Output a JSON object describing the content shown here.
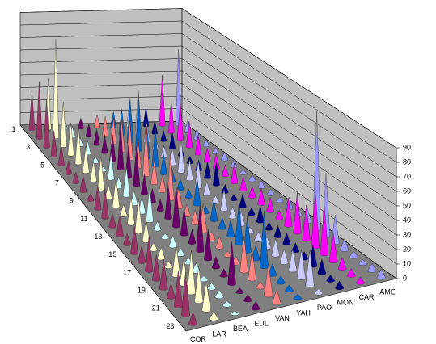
{
  "chart_data": {
    "type": "cone3d",
    "categories": [
      1,
      null,
      3,
      null,
      5,
      null,
      7,
      null,
      9,
      null,
      11,
      null,
      13,
      null,
      15,
      null,
      17,
      null,
      19,
      null,
      21,
      null,
      23
    ],
    "series": [
      {
        "name": "COR",
        "color": "#993366",
        "values": [
          30,
          45,
          38,
          20,
          15,
          10,
          8,
          12,
          5,
          18,
          22,
          10,
          15,
          8,
          20,
          12,
          25,
          18,
          20,
          10,
          25,
          30,
          8
        ]
      },
      {
        "name": "LAR",
        "color": "#ffffcc",
        "values": [
          40,
          78,
          35,
          25,
          30,
          20,
          15,
          25,
          10,
          22,
          8,
          20,
          25,
          15,
          5,
          8,
          4,
          22,
          18,
          30,
          25,
          20,
          5
        ]
      },
      {
        "name": "BEA",
        "color": "#ccffff",
        "values": [
          5,
          8,
          6,
          10,
          4,
          3,
          20,
          8,
          22,
          10,
          12,
          25,
          6,
          3,
          8,
          5,
          4,
          6,
          3,
          4,
          5,
          3,
          2
        ]
      },
      {
        "name": "EUL",
        "color": "#660066",
        "values": [
          8,
          10,
          12,
          14,
          20,
          35,
          25,
          30,
          15,
          10,
          8,
          25,
          30,
          20,
          10,
          35,
          22,
          8,
          5,
          30,
          3,
          4,
          5
        ]
      },
      {
        "name": "VAN",
        "color": "#ff8080",
        "values": [
          10,
          15,
          20,
          25,
          30,
          22,
          40,
          18,
          12,
          35,
          15,
          8,
          10,
          20,
          6,
          8,
          3,
          5,
          25,
          20,
          4,
          22,
          10
        ]
      },
      {
        "name": "YAH",
        "color": "#0066cc",
        "values": [
          12,
          20,
          35,
          45,
          25,
          30,
          15,
          10,
          8,
          6,
          20,
          5,
          15,
          8,
          12,
          30,
          25,
          10,
          40,
          8,
          5,
          4,
          3
        ]
      },
      {
        "name": "PAO",
        "color": "#ccccff",
        "values": [
          20,
          35,
          15,
          10,
          8,
          12,
          25,
          15,
          20,
          10,
          5,
          15,
          8,
          10,
          4,
          6,
          8,
          12,
          10,
          15,
          20,
          25,
          3
        ]
      },
      {
        "name": "MON",
        "color": "#000080",
        "values": [
          15,
          10,
          8,
          12,
          6,
          5,
          8,
          12,
          18,
          6,
          4,
          10,
          5,
          12,
          5,
          8,
          8,
          6,
          5,
          15,
          10,
          4,
          5
        ]
      },
      {
        "name": "CAR",
        "color": "#ff00ff",
        "values": [
          40,
          25,
          30,
          20,
          15,
          10,
          12,
          8,
          15,
          10,
          8,
          12,
          10,
          6,
          20,
          30,
          25,
          40,
          35,
          20,
          8,
          5,
          4
        ]
      },
      {
        "name": "AME",
        "color": "#9999ff",
        "values": [
          60,
          10,
          8,
          5,
          4,
          6,
          5,
          3,
          4,
          5,
          4,
          3,
          8,
          5,
          10,
          85,
          45,
          20,
          8,
          4,
          3,
          5,
          6
        ]
      }
    ],
    "ylim": [
      0,
      90
    ],
    "yticks": [
      0,
      10,
      20,
      30,
      40,
      50,
      60,
      70,
      80,
      90
    ],
    "grid": true
  }
}
